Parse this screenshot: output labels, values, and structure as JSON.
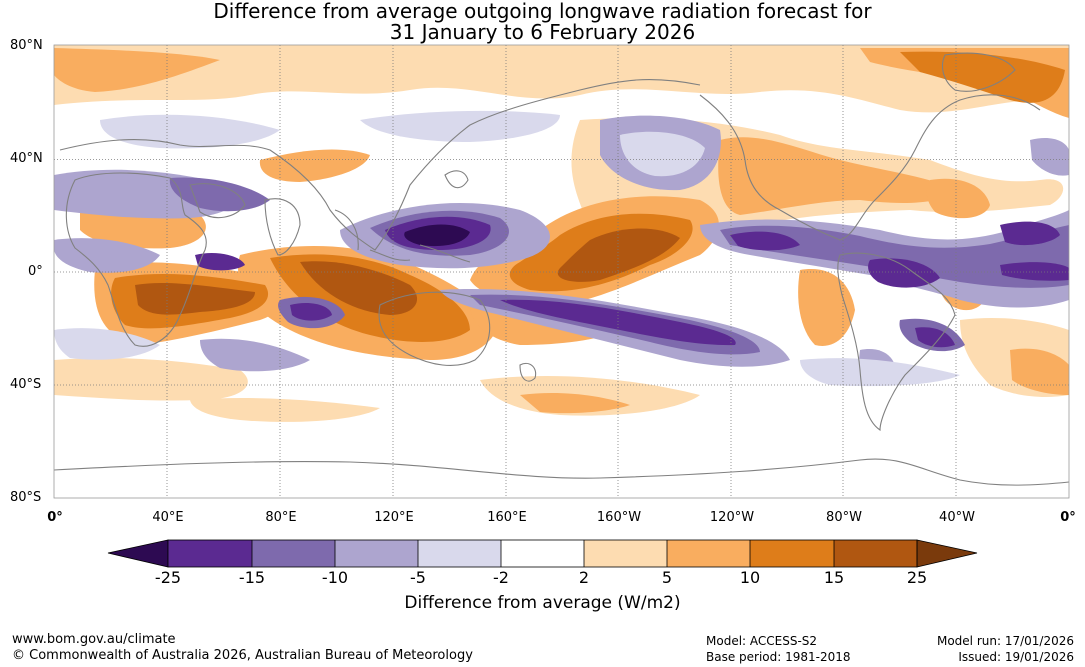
{
  "title": {
    "line1": "Difference from average outgoing longwave radiation forecast for",
    "line2": "31 January to 6 February 2026"
  },
  "map": {
    "lat_labels": [
      "80°N",
      "40°N",
      "0°",
      "40°S",
      "80°S"
    ],
    "lon_labels": [
      "0°",
      "40°E",
      "80°E",
      "120°E",
      "160°E",
      "160°W",
      "120°W",
      "80°W",
      "40°W",
      "0°"
    ],
    "grid": true,
    "land_outline_color": "#808080"
  },
  "colorbar": {
    "labels": [
      "-25",
      "-15",
      "-10",
      "-5",
      "-2",
      "2",
      "5",
      "10",
      "15",
      "25"
    ],
    "colors": [
      "#2d0a52",
      "#5b2a91",
      "#7e6aad",
      "#ada5cf",
      "#d9d9ec",
      "#ffffff",
      "#fddcb1",
      "#f9ad5f",
      "#de7d1a",
      "#b05711",
      "#7a3a0c"
    ],
    "title": "Difference from average (W/m2)"
  },
  "footer": {
    "website": "www.bom.gov.au/climate",
    "copyright": "© Commonwealth of Australia 2026, Australian Bureau of Meteorology",
    "model": "Model: ACCESS-S2",
    "base_period": "Base period: 1981-2018",
    "model_run": "Model run: 17/01/2026",
    "issued": "Issued: 19/01/2026"
  }
}
